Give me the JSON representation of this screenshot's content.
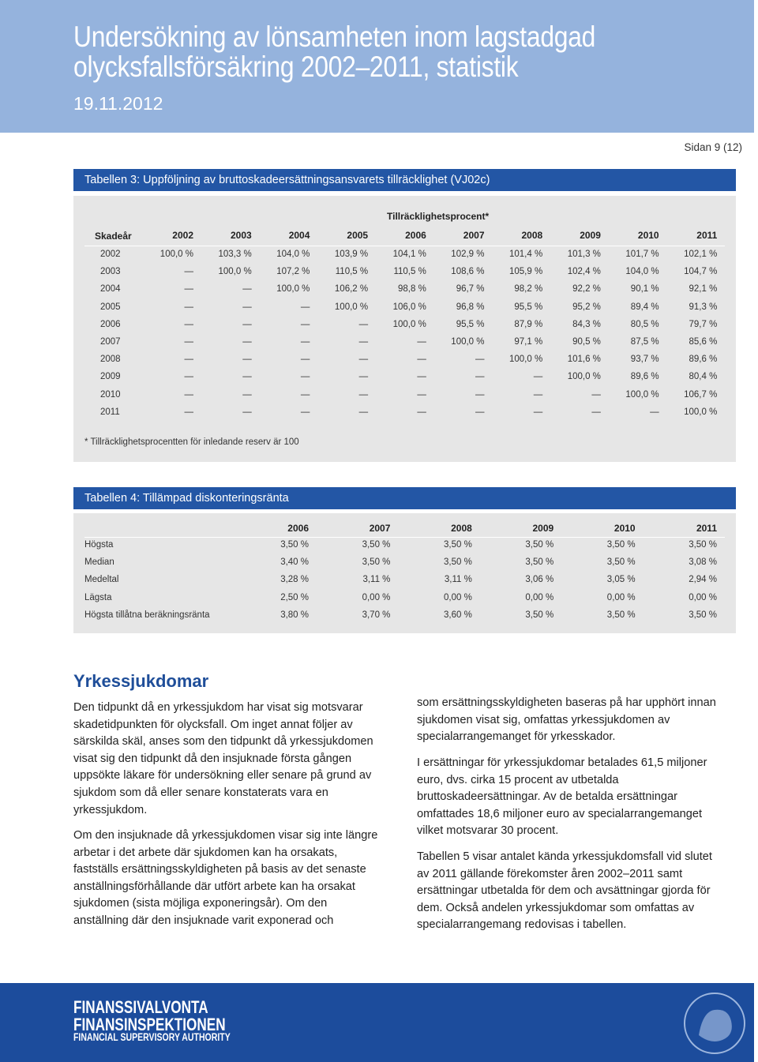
{
  "header": {
    "title_lines": [
      "Undersökning av lönsamheten inom lagstadgad",
      "olycksfallsförsäkring 2002–2011, statistik"
    ],
    "date": "19.11.2012"
  },
  "page": "Sidan 9 (12)",
  "table3": {
    "title": "Tabellen 3: Uppföljning av bruttoskadeersättningsansvarets tillräcklighet (VJ02c)",
    "group_header": "Tillräcklighetsprocent*",
    "row_header": "Skadeår",
    "columns": [
      "2002",
      "2003",
      "2004",
      "2005",
      "2006",
      "2007",
      "2008",
      "2009",
      "2010",
      "2011"
    ],
    "rows": [
      [
        "2002",
        "100,0 %",
        "103,3 %",
        "104,0 %",
        "103,9 %",
        "104,1 %",
        "102,9 %",
        "101,4 %",
        "101,3 %",
        "101,7 %",
        "102,1 %"
      ],
      [
        "2003",
        "—",
        "100,0 %",
        "107,2 %",
        "110,5 %",
        "110,5 %",
        "108,6 %",
        "105,9 %",
        "102,4 %",
        "104,0 %",
        "104,7 %"
      ],
      [
        "2004",
        "—",
        "—",
        "100,0 %",
        "106,2 %",
        "98,8 %",
        "96,7 %",
        "98,2 %",
        "92,2 %",
        "90,1 %",
        "92,1 %"
      ],
      [
        "2005",
        "—",
        "—",
        "—",
        "100,0 %",
        "106,0 %",
        "96,8 %",
        "95,5 %",
        "95,2 %",
        "89,4 %",
        "91,3 %"
      ],
      [
        "2006",
        "—",
        "—",
        "—",
        "—",
        "100,0 %",
        "95,5 %",
        "87,9 %",
        "84,3 %",
        "80,5 %",
        "79,7 %"
      ],
      [
        "2007",
        "—",
        "—",
        "—",
        "—",
        "—",
        "100,0 %",
        "97,1 %",
        "90,5 %",
        "87,5 %",
        "85,6 %"
      ],
      [
        "2008",
        "—",
        "—",
        "—",
        "—",
        "—",
        "—",
        "100,0 %",
        "101,6 %",
        "93,7 %",
        "89,6 %"
      ],
      [
        "2009",
        "—",
        "—",
        "—",
        "—",
        "—",
        "—",
        "—",
        "100,0 %",
        "89,6 %",
        "80,4 %"
      ],
      [
        "2010",
        "—",
        "—",
        "—",
        "—",
        "—",
        "—",
        "—",
        "—",
        "100,0 %",
        "106,7 %"
      ],
      [
        "2011",
        "—",
        "—",
        "—",
        "—",
        "—",
        "—",
        "—",
        "—",
        "—",
        "100,0 %"
      ]
    ],
    "footnote": "* Tillräcklighetsprocentten för inledande reserv är 100"
  },
  "table4": {
    "title": "Tabellen 4: Tillämpad diskonteringsränta",
    "columns": [
      "2006",
      "2007",
      "2008",
      "2009",
      "2010",
      "2011"
    ],
    "rows": [
      [
        "Högsta",
        "3,50 %",
        "3,50 %",
        "3,50 %",
        "3,50 %",
        "3,50 %",
        "3,50 %"
      ],
      [
        "Median",
        "3,40 %",
        "3,50 %",
        "3,50 %",
        "3,50 %",
        "3,50 %",
        "3,08 %"
      ],
      [
        "Medeltal",
        "3,28 %",
        "3,11 %",
        "3,11 %",
        "3,06 %",
        "3,05 %",
        "2,94 %"
      ],
      [
        "Lägsta",
        "2,50 %",
        "0,00 %",
        "0,00 %",
        "0,00 %",
        "0,00 %",
        "0,00 %"
      ],
      [
        "Högsta tillåtna beräkningsränta",
        "3,80 %",
        "3,70 %",
        "3,60 %",
        "3,50 %",
        "3,50 %",
        "3,50 %"
      ]
    ]
  },
  "section": {
    "heading": "Yrkessjukdomar",
    "left": [
      "Den tidpunkt då en yrkessjukdom har visat sig motsvarar skadetidpunkten för olycksfall. Om inget annat följer av särskilda skäl, anses som den tidpunkt då yrkessjukdomen visat sig den tidpunkt då den insjuknade första gången uppsökte läkare för undersökning eller senare på grund av sjukdom som då eller senare konstaterats vara en yrkessjukdom.",
      "Om den insjuknade då yrkessjukdomen visar sig inte längre arbetar i det arbete där sjukdomen kan ha orsakats, fastställs ersättningsskyldigheten på basis av det senaste anställningsförhållande där utfört arbete kan ha orsakat sjukdomen (sista möjliga exponeringsår). Om den anställning där den insjuknade varit exponerad och"
    ],
    "right": [
      "som ersättningsskyldigheten baseras på har upphört innan sjukdomen visat sig, omfattas yrkessjukdomen av specialarrangemanget för yrkesskador.",
      "I ersättningar för yrkessjukdomar betalades 61,5 miljoner euro, dvs. cirka 15 procent av utbetalda bruttoskadeersättningar. Av de betalda ersättningar omfattades 18,6 miljoner euro av specialarrangemanget vilket motsvarar 30 procent.",
      "Tabellen 5 visar antalet kända yrkessjukdomsfall vid slutet av 2011 gällande förekomster åren 2002–2011 samt ersättningar utbetalda för dem och avsättningar gjorda för dem. Också andelen yrkessjukdomar som omfattas av specialarrangemang redovisas i tabellen."
    ]
  },
  "footer": {
    "logo_lines": [
      "FINANSSIVALVONTA",
      "FINANSINSPEKTIONEN",
      "FINANCIAL SUPERVISORY AUTHORITY"
    ]
  }
}
